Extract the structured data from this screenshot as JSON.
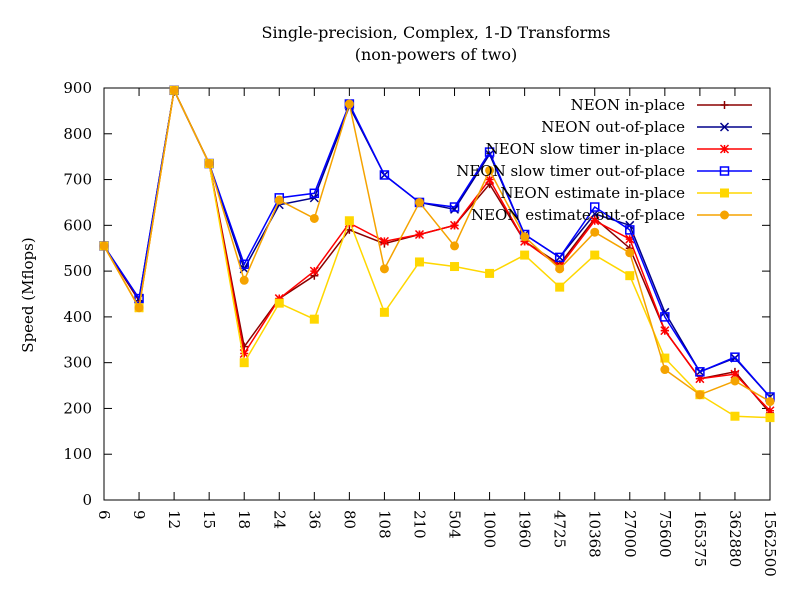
{
  "chart_data": {
    "type": "line",
    "title": "Single-precision, Complex, 1-D Transforms",
    "subtitle": "(non-powers of two)",
    "xlabel": "",
    "ylabel": "Speed (Mflops)",
    "categories": [
      "6",
      "9",
      "12",
      "15",
      "18",
      "24",
      "36",
      "80",
      "108",
      "210",
      "504",
      "1000",
      "1960",
      "4725",
      "10368",
      "27000",
      "75600",
      "165375",
      "362880",
      "1562500"
    ],
    "y_ticks": [
      "0",
      "100",
      "200",
      "300",
      "400",
      "500",
      "600",
      "700",
      "800",
      "900"
    ],
    "ylim": [
      0,
      900
    ],
    "grid": false,
    "legend_position": "top-right",
    "series": [
      {
        "name": "NEON in-place",
        "color": "#8b0000",
        "marker": "plus",
        "values": [
          555,
          435,
          895,
          735,
          335,
          440,
          490,
          590,
          560,
          580,
          600,
          690,
          565,
          515,
          615,
          550,
          370,
          265,
          280,
          190
        ]
      },
      {
        "name": "NEON out-of-place",
        "color": "#00008b",
        "marker": "cross",
        "values": [
          555,
          440,
          895,
          735,
          505,
          645,
          660,
          860,
          710,
          650,
          635,
          755,
          580,
          530,
          625,
          600,
          410,
          280,
          310,
          225
        ]
      },
      {
        "name": "NEON slow timer in-place",
        "color": "#ff0000",
        "marker": "star",
        "values": [
          555,
          420,
          895,
          735,
          320,
          440,
          500,
          605,
          565,
          580,
          600,
          700,
          565,
          510,
          610,
          570,
          370,
          265,
          275,
          195
        ]
      },
      {
        "name": "NEON slow timer out-of-place",
        "color": "#0000ff",
        "marker": "square-open",
        "values": [
          555,
          440,
          895,
          735,
          515,
          660,
          670,
          865,
          710,
          650,
          640,
          760,
          580,
          530,
          640,
          590,
          400,
          280,
          312,
          225
        ]
      },
      {
        "name": "NEON estimate in-place",
        "color": "#ffd700",
        "marker": "square-filled",
        "values": [
          555,
          420,
          895,
          735,
          300,
          430,
          395,
          610,
          410,
          520,
          510,
          495,
          535,
          465,
          535,
          490,
          310,
          230,
          183,
          180
        ]
      },
      {
        "name": "NEON estimate out-of-place",
        "color": "#f5a300",
        "marker": "circle",
        "values": [
          555,
          420,
          895,
          735,
          480,
          655,
          615,
          865,
          505,
          650,
          555,
          720,
          575,
          505,
          585,
          540,
          285,
          230,
          260,
          215
        ]
      }
    ]
  }
}
